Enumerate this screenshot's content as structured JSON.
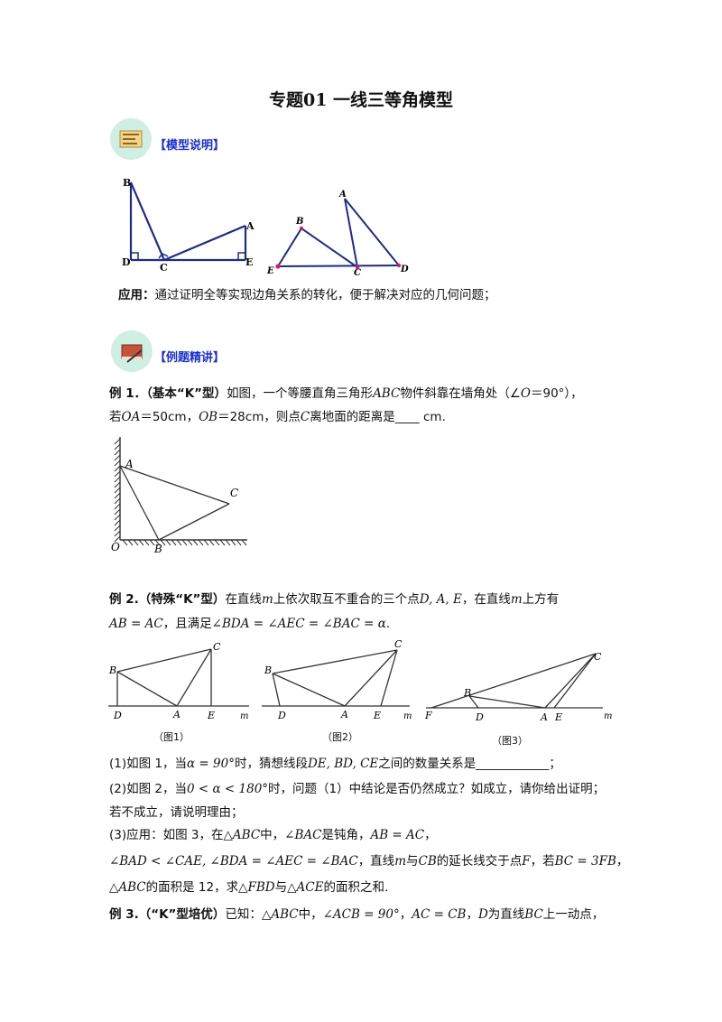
{
  "title": "专题01 一线三等角模型",
  "section1": {
    "label": "【模型说明】"
  },
  "fig1": {
    "left_labels": {
      "B": "B",
      "A": "A",
      "D": "D",
      "C": "C",
      "E": "E"
    },
    "right_labels": {
      "A": "A",
      "B": "B",
      "E": "E",
      "C": "C",
      "D": "D"
    }
  },
  "application": {
    "label": "应用：",
    "text": "通过证明全等实现边角关系的转化，便于解决对应的几何问题；"
  },
  "section2": {
    "label": "【例题精讲】"
  },
  "ex1": {
    "head": "例 1．（基本“K”型）",
    "line1_a": "如图，一个等腰直角三角形",
    "line1_var": "ABC",
    "line1_b": "物件斜靠在墙角处（∠",
    "line1_o": "O",
    "line1_c": "＝90°），",
    "line2_a": "若",
    "line2_oa": "OA",
    "line2_b": "＝50cm，",
    "line2_ob": "OB",
    "line2_c": "＝28cm，则点",
    "line2_cv": "C",
    "line2_d": "离地面的距离是____ cm.",
    "fig_labels": {
      "A": "A",
      "C": "C",
      "O": "O",
      "B": "B"
    }
  },
  "ex2": {
    "head": "例 2.（特殊“K”型）",
    "line1_a": "在直线",
    "m": "m",
    "line1_b": "上依次取互不重合的三个点",
    "pts": "D, A, E",
    "line1_c": "，在直线",
    "line1_d": "上方有",
    "line2_a": "AB = AC",
    "line2_b": "，且满足",
    "line2_c": "∠BDA = ∠AEC = ∠BAC = α",
    "line2_d": ".",
    "fig_labels": {
      "B": "B",
      "C": "C",
      "D": "D",
      "A": "A",
      "E": "E",
      "m": "m",
      "F": "F"
    },
    "captions": [
      "（图1）",
      "（图2）",
      "（图3）"
    ],
    "q1_a": "(1)如图 1，当",
    "q1_alpha": "α = 90°",
    "q1_b": "时，猜想线段",
    "q1_segs": "DE, BD, CE",
    "q1_c": "之间的数量关系是____________；",
    "q2_a": "(2)如图 2，当",
    "q2_range": "0 < α < 180°",
    "q2_b": "时，问题（1）中结论是否仍然成立？如成立，请你给出证明；",
    "q2_line2": "若不成立，请说明理由；",
    "q3_a": "(3)应用：如图 3，在",
    "q3_tri": "△ABC",
    "q3_b": "中，",
    "q3_bac": "∠BAC",
    "q3_c": "是钝角，",
    "q3_eq": "AB = AC",
    "q3_d": "，",
    "q3_line2_a": "∠BAD < ∠CAE, ∠BDA = ∠AEC = ∠BAC",
    "q3_line2_b": "，直线",
    "q3_line2_c": "与",
    "q3_cb": "CB",
    "q3_line2_d": "的延长线交于点",
    "q3_f": "F",
    "q3_line2_e": "，若",
    "q3_bc": "BC = 3FB",
    "q3_line2_f": "，",
    "q3_line3_tri": "△ABC",
    "q3_line3_a": "的面积是 12，求",
    "q3_fbd": "△FBD",
    "q3_line3_b": "与",
    "q3_ace": "△ACE",
    "q3_line3_c": "的面积之和."
  },
  "ex3": {
    "head": "例 3.（“K”型培优）",
    "text_a": "已知：",
    "tri": "△ABC",
    "text_b": "中，",
    "acb": "∠ACB = 90°",
    "text_c": "，",
    "eq": "AC = CB",
    "text_d": "，",
    "d": "D",
    "text_e": "为直线",
    "bc": "BC",
    "text_f": "上一动点，"
  }
}
